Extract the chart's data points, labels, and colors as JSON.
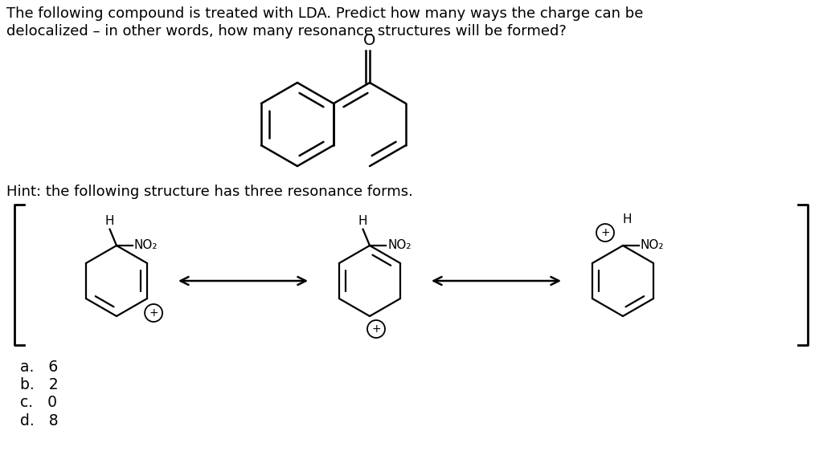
{
  "title_line1": "The following compound is treated with LDA. Predict how many ways the charge can be",
  "title_line2": "delocalized – in other words, how many resonance structures will be formed?",
  "hint_text": "Hint: the following structure has three resonance forms.",
  "answers": [
    "a.   6",
    "b.   2",
    "c.   0",
    "d.   8"
  ],
  "bg_color": "#ffffff",
  "text_color": "#000000",
  "font_size_title": 13.0,
  "font_size_answers": 13.5,
  "font_size_hint": 13.0
}
